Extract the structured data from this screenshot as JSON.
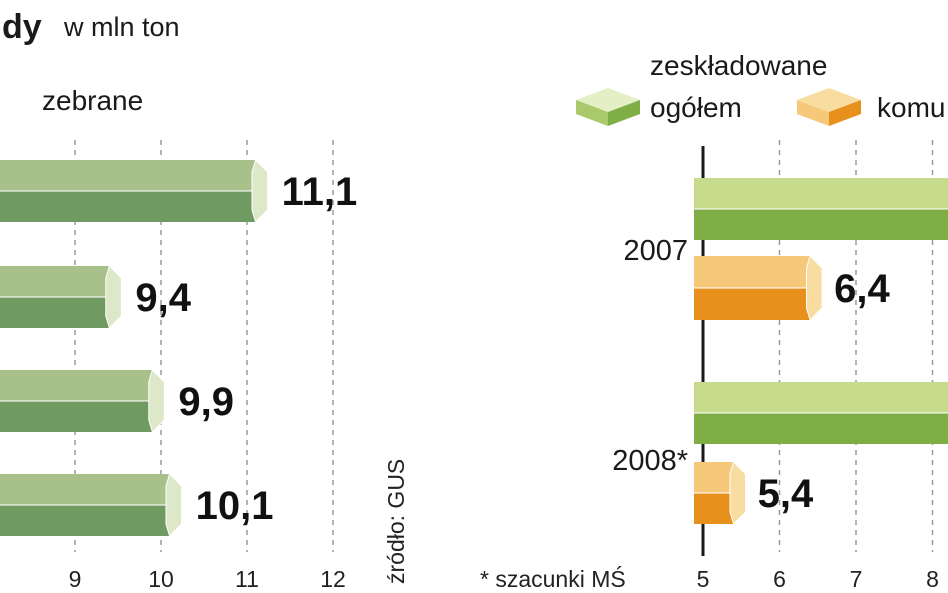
{
  "header": {
    "title": "dy",
    "unit": "w mln ton"
  },
  "legend": {
    "collected": "zebrane",
    "stored_line1": "zeskładowane",
    "stored_line2": "ogółem",
    "municipal": "komu"
  },
  "colors": {
    "green_top": "#c6dc8c",
    "green_mid": "#a9c96a",
    "green_bottom": "#7fae46",
    "green_cap": "#e4efc6",
    "orange_top": "#f6c87a",
    "orange_bottom": "#e8901c",
    "orange_cap": "#f9dca0",
    "collected_top": "#a8c08a",
    "collected_bottom": "#6f9a62",
    "collected_cap": "#dde8c8"
  },
  "source": "źródło: GUS",
  "footnote": "* szacunki MŚ",
  "chart_data": [
    {
      "type": "bar",
      "orientation": "horizontal",
      "legend": "zebrane",
      "values": [
        11.1,
        9.4,
        9.9,
        10.1
      ],
      "value_labels": [
        "11,1",
        "9,4",
        "9,9",
        "10,1"
      ],
      "xlim": [
        8,
        12
      ],
      "xticks": [
        9,
        10,
        11,
        12
      ],
      "grid": true
    },
    {
      "type": "bar",
      "orientation": "horizontal",
      "categories": [
        "2007",
        "2008*"
      ],
      "series": [
        {
          "name": "zeskładowane ogółem",
          "values": [
            null,
            null
          ]
        },
        {
          "name": "komu",
          "values": [
            6.4,
            5.4
          ],
          "value_labels": [
            "6,4",
            "5,4"
          ]
        }
      ],
      "xlim": [
        5,
        8.6
      ],
      "xticks": [
        5,
        6,
        7,
        8
      ],
      "grid": true
    }
  ]
}
